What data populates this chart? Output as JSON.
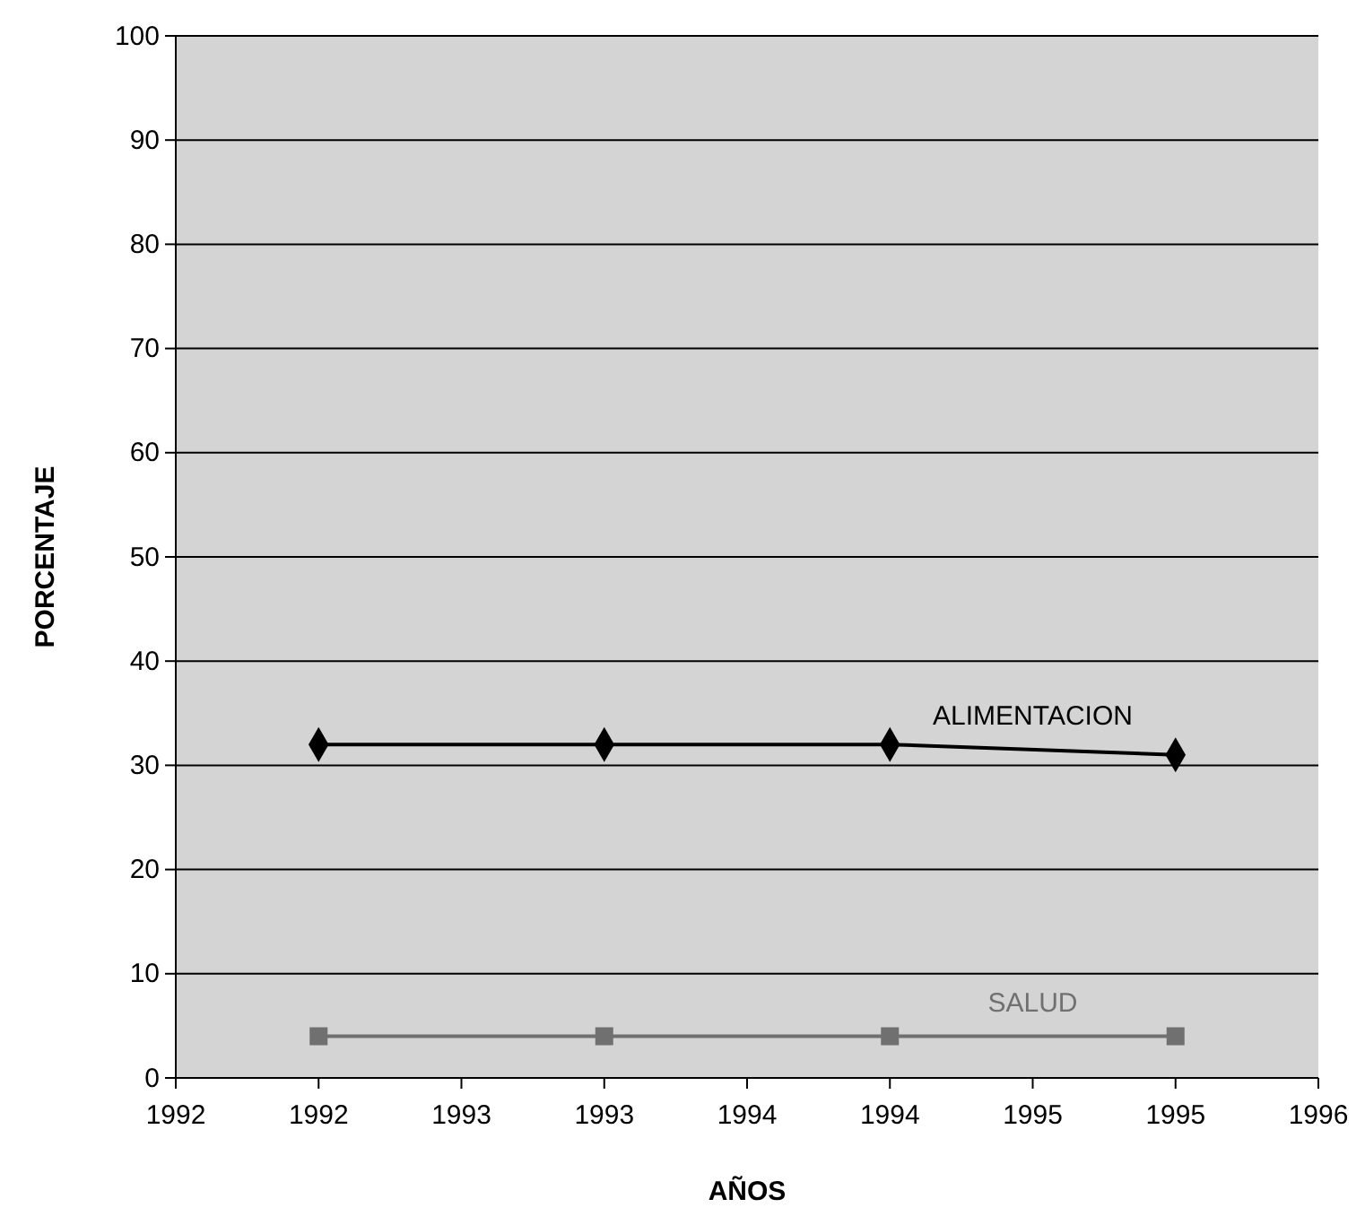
{
  "chart_data": {
    "type": "line",
    "xlabel": "AÑOS",
    "ylabel": "PORCENTAJE",
    "x": [
      1992.5,
      1993.5,
      1994.5,
      1995.5
    ],
    "series": [
      {
        "name": "ALIMENTACION",
        "color": "#000000",
        "marker": "diamond",
        "values": [
          32,
          32,
          32,
          31
        ]
      },
      {
        "name": "SALUD",
        "color": "#707070",
        "marker": "square",
        "values": [
          4,
          4,
          4,
          4
        ]
      }
    ],
    "xlim": [
      1992,
      1996
    ],
    "xticks": [
      1992,
      {
        "value": 1992.5,
        "label": "1992"
      },
      1993,
      {
        "value": 1993.5,
        "label": "1993"
      },
      1994,
      {
        "value": 1994.5,
        "label": "1994"
      },
      1995,
      {
        "value": 1995.5,
        "label": "1995"
      },
      1996
    ],
    "ylim": [
      0,
      100
    ],
    "yticks": [
      0,
      10,
      20,
      30,
      40,
      50,
      60,
      70,
      80,
      90,
      100
    ],
    "grid": "y"
  }
}
